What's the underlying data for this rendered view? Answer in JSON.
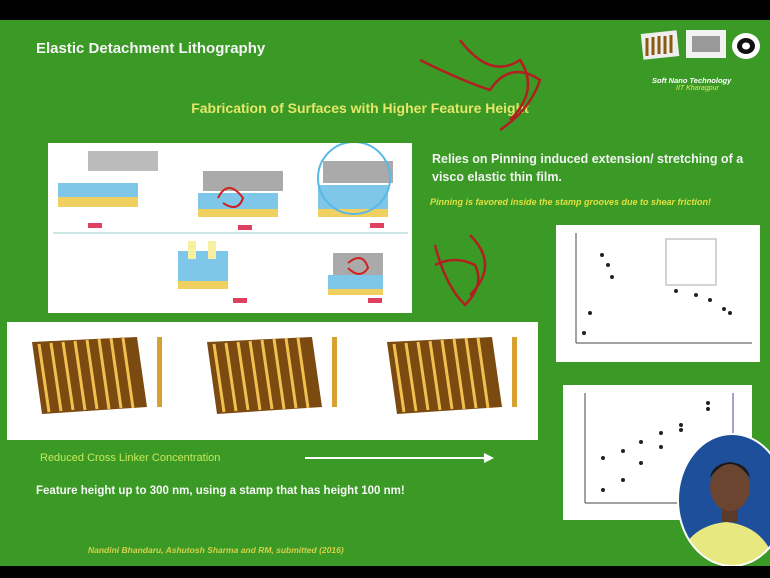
{
  "slide": {
    "title": "Elastic Detachment Lithography",
    "logo": {
      "line1": "Soft Nano Technology",
      "line2": "IIT Kharagpur"
    },
    "subtitle": "Fabrication of Surfaces with Higher Feature Height",
    "point": "Relies on Pinning induced extension/ stretching of a visco elastic thin film.",
    "note": "Pinning is favored  inside the stamp grooves due to shear friction!",
    "arrow_label": "Reduced Cross Linker Concentration",
    "conclusion": "Feature height up to 300 nm, using a stamp that has height 100 nm!",
    "citation": "Nandini Bhandaru, Ashutosh Sharma  and RM, submitted (2016)"
  }
}
